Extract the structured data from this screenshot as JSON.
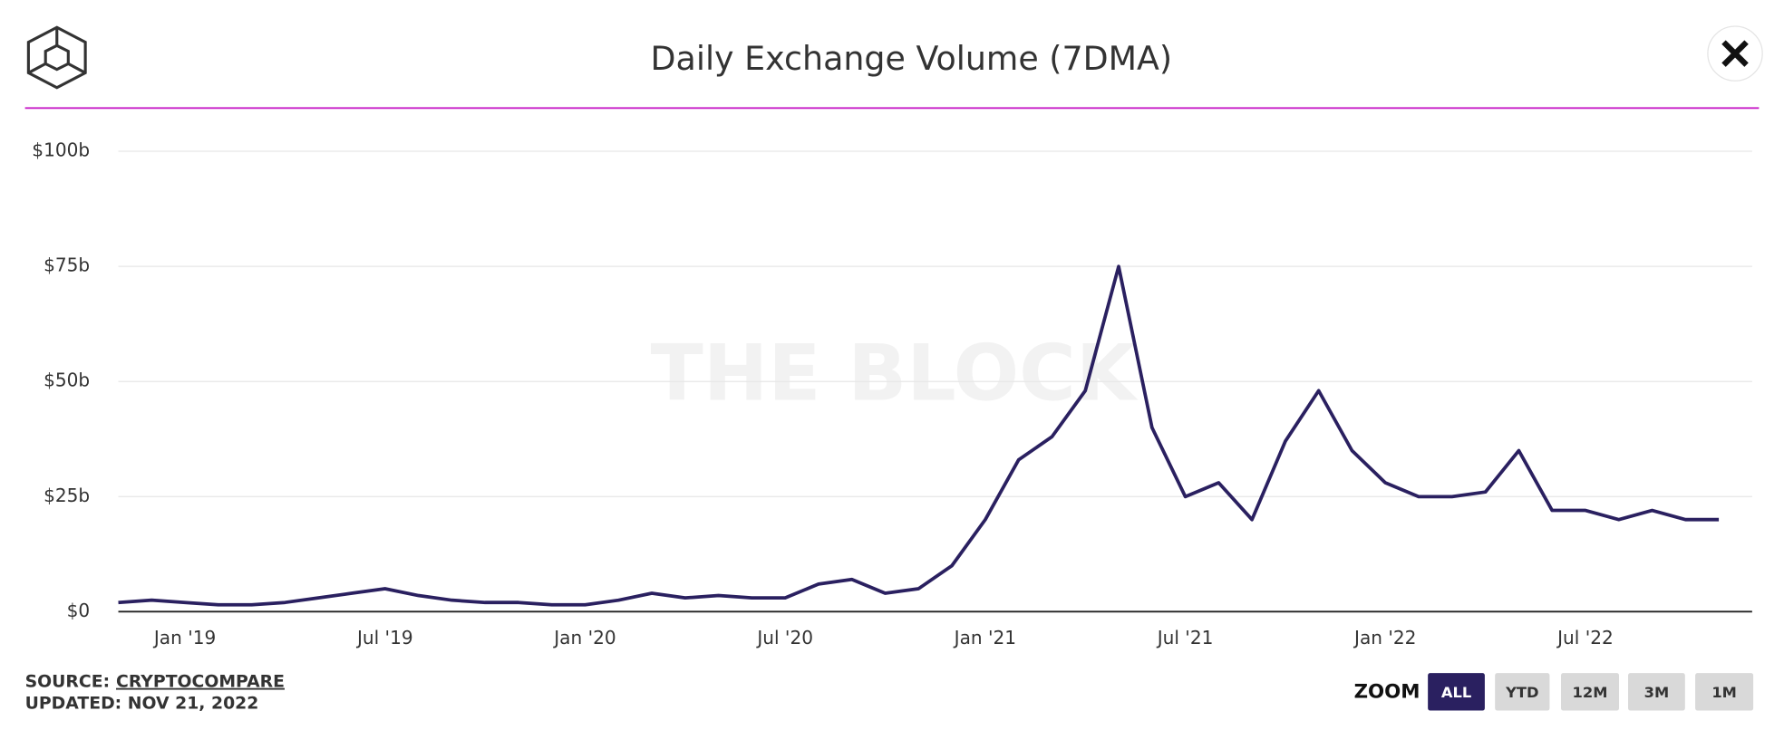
{
  "header": {
    "title": "Daily Exchange Volume (7DMA)"
  },
  "watermark": "THE BLOCK",
  "chart_data": {
    "type": "line",
    "x": [
      "2018-11",
      "2018-12",
      "2019-01",
      "2019-02",
      "2019-03",
      "2019-04",
      "2019-05",
      "2019-06",
      "2019-07",
      "2019-08",
      "2019-09",
      "2019-10",
      "2019-11",
      "2019-12",
      "2020-01",
      "2020-02",
      "2020-03",
      "2020-04",
      "2020-05",
      "2020-06",
      "2020-07",
      "2020-08",
      "2020-09",
      "2020-10",
      "2020-11",
      "2020-12",
      "2021-01",
      "2021-02",
      "2021-03",
      "2021-04",
      "2021-05",
      "2021-06",
      "2021-07",
      "2021-08",
      "2021-09",
      "2021-10",
      "2021-11",
      "2021-12",
      "2022-01",
      "2022-02",
      "2022-03",
      "2022-04",
      "2022-05",
      "2022-06",
      "2022-07",
      "2022-08",
      "2022-09",
      "2022-10",
      "2022-11"
    ],
    "series": [
      {
        "name": "Daily Exchange Volume (7DMA)",
        "color": "#2a2060",
        "values": [
          2,
          2.5,
          2,
          1.5,
          1.5,
          2,
          3,
          4,
          5,
          3.5,
          2.5,
          2,
          2,
          1.5,
          1.5,
          2.5,
          4,
          3,
          3.5,
          3,
          3,
          6,
          7,
          4,
          5,
          10,
          20,
          33,
          38,
          48,
          75,
          40,
          25,
          28,
          20,
          37,
          48,
          35,
          28,
          25,
          25,
          26,
          35,
          22,
          22,
          20,
          22,
          20,
          20
        ]
      }
    ],
    "xlim": [
      "2018-11",
      "2022-12"
    ],
    "xticks": [
      {
        "value": "2019-01",
        "label": "Jan '19"
      },
      {
        "value": "2019-07",
        "label": "Jul '19"
      },
      {
        "value": "2020-01",
        "label": "Jan '20"
      },
      {
        "value": "2020-07",
        "label": "Jul '20"
      },
      {
        "value": "2021-01",
        "label": "Jan '21"
      },
      {
        "value": "2021-07",
        "label": "Jul '21"
      },
      {
        "value": "2022-01",
        "label": "Jan '22"
      },
      {
        "value": "2022-07",
        "label": "Jul '22"
      }
    ],
    "ylim": [
      0,
      100
    ],
    "yticks": [
      {
        "value": 0,
        "label": "$0"
      },
      {
        "value": 25,
        "label": "$25b"
      },
      {
        "value": 50,
        "label": "$50b"
      },
      {
        "value": 75,
        "label": "$75b"
      },
      {
        "value": 100,
        "label": "$100b"
      }
    ],
    "grid": true
  },
  "footer": {
    "source_label": "SOURCE:",
    "source": "CRYPTOCOMPARE",
    "updated": "UPDATED: NOV 21, 2022"
  },
  "zoom": {
    "label": "ZOOM",
    "buttons": [
      "ALL",
      "YTD",
      "12M",
      "3M",
      "1M"
    ]
  }
}
